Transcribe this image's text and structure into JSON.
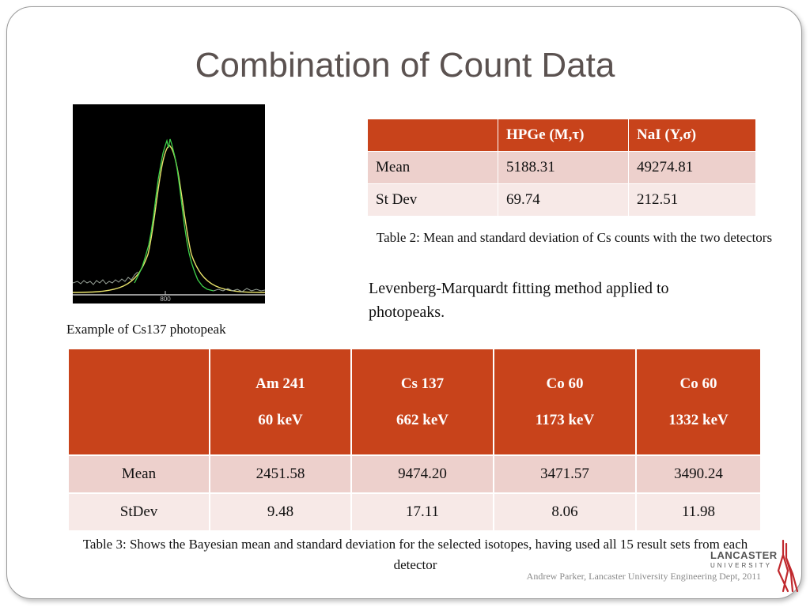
{
  "slide": {
    "title": "Combination of Count Data",
    "photo_caption": "Example of Cs137 photopeak",
    "photo_axis_label": "800",
    "method_text": "Levenberg-Marquardt fitting method applied to photopeaks.",
    "footer": "Andrew Parker, Lancaster University Engineering Dept, 2011"
  },
  "logo": {
    "name": "LANCASTER",
    "sub": "UNIVERSITY"
  },
  "table2": {
    "headers": [
      "",
      "HPGe (M,τ)",
      "NaI (Y,σ)"
    ],
    "rows": [
      [
        "Mean",
        "5188.31",
        "49274.81"
      ],
      [
        "St Dev",
        "69.74",
        "212.51"
      ]
    ],
    "caption": "Table 2: Mean and standard deviation of Cs counts with the two detectors"
  },
  "table3": {
    "headers": [
      {
        "line1": "",
        "line2": ""
      },
      {
        "line1": "Am 241",
        "line2": "60 keV"
      },
      {
        "line1": "Cs 137",
        "line2": "662 keV"
      },
      {
        "line1": "Co 60",
        "line2": "1173 keV"
      },
      {
        "line1": "Co 60",
        "line2": "1332 keV"
      }
    ],
    "rows": [
      [
        "Mean",
        "2451.58",
        "9474.20",
        "3471.57",
        "3490.24"
      ],
      [
        "StDev",
        "9.48",
        "17.11",
        "8.06",
        "11.98"
      ]
    ],
    "caption": "Table 3: Shows the Bayesian mean and standard deviation for the selected isotopes, having used all 15 result sets from each detector"
  },
  "colors": {
    "header_bg": "#c8431b",
    "row_dark": "#edd0cc",
    "row_light": "#f7e9e7",
    "title": "#5b5250"
  }
}
